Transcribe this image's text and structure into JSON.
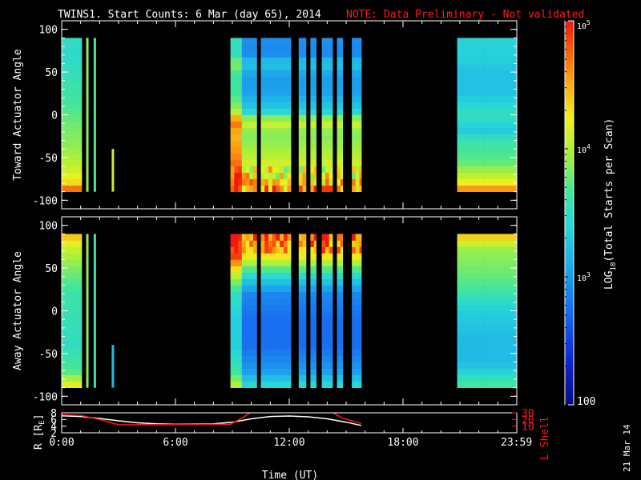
{
  "title": {
    "main": "TWINS1. Start Counts:  6 Mar (day  65), 2014",
    "note": "NOTE: Data Preliminary - Not validated",
    "note_color": "#ff1a1a"
  },
  "footer_date": "21 Mar 14",
  "chart_data": [
    {
      "type": "heatmap",
      "name": "toward",
      "ylabel": "Toward Actuator Angle",
      "ylim": [
        -110,
        110
      ],
      "yticks": [
        100,
        50,
        0,
        -50,
        -100
      ],
      "xlim": [
        0,
        24
      ],
      "angle_range": [
        -90,
        90
      ],
      "data_blocks": [
        {
          "start": 0.0,
          "end": 1.05,
          "profile": "toward_early"
        },
        {
          "start": 8.9,
          "end": 15.8,
          "profile": "toward_mid"
        },
        {
          "start": 20.85,
          "end": 24.0,
          "profile": "toward_late"
        }
      ],
      "spikes": [
        {
          "time": 1.35,
          "amin": -90,
          "amax": 90,
          "level": 3.9
        },
        {
          "time": 1.75,
          "amin": -90,
          "amax": 90,
          "level": 3.7
        },
        {
          "time": 2.7,
          "amin": -90,
          "amax": -40,
          "level": 4.1
        }
      ],
      "gaps": [
        10.4,
        12.2,
        12.4,
        13.05,
        13.5,
        13.65,
        14.45,
        14.9,
        15.2
      ]
    },
    {
      "type": "heatmap",
      "name": "away",
      "ylabel": "Away Actuator Angle",
      "ylim": [
        -110,
        110
      ],
      "yticks": [
        100,
        50,
        0,
        -50,
        -100
      ],
      "xlim": [
        0,
        24
      ],
      "angle_range": [
        -90,
        90
      ],
      "data_blocks": [
        {
          "start": 0.0,
          "end": 1.05,
          "profile": "away_early"
        },
        {
          "start": 8.9,
          "end": 15.8,
          "profile": "away_mid"
        },
        {
          "start": 20.85,
          "end": 24.0,
          "profile": "away_late"
        }
      ],
      "spikes": [
        {
          "time": 1.35,
          "amin": -90,
          "amax": 90,
          "level": 3.9
        },
        {
          "time": 1.75,
          "amin": -90,
          "amax": 90,
          "level": 3.6
        },
        {
          "time": 2.7,
          "amin": -90,
          "amax": -40,
          "level": 3.2
        }
      ],
      "gaps": [
        10.4,
        12.2,
        12.4,
        13.05,
        13.5,
        13.65,
        14.45,
        14.9,
        15.2
      ]
    },
    {
      "type": "line",
      "name": "orbit",
      "xlabel": "Time (UT)",
      "xlim": [
        0,
        24
      ],
      "xticks": [
        0,
        6,
        12,
        18,
        23.983
      ],
      "xticklabels": [
        "0:00",
        "6:00",
        "12:00",
        "18:00",
        "23:59"
      ],
      "left_axis": {
        "label": "R [R",
        "label_sub": "E",
        "label_close": "]",
        "ylim": [
          2,
          8
        ],
        "ticks": [
          2,
          4,
          6,
          8
        ],
        "color": "#ffffff"
      },
      "right_axis": {
        "label": "L Shell",
        "ylim": [
          0,
          30
        ],
        "ticks": [
          10,
          20,
          30
        ],
        "color": "#ff1a1a"
      },
      "series": [
        {
          "axis": "left",
          "color": "#ffffff",
          "x": [
            0,
            1,
            2,
            3,
            4,
            5,
            6,
            7,
            8,
            9,
            10,
            11,
            12,
            13,
            14,
            15,
            15.8
          ],
          "y": [
            7.1,
            6.9,
            6.3,
            5.6,
            5.0,
            4.7,
            4.6,
            4.65,
            4.7,
            5.2,
            6.2,
            6.9,
            7.05,
            6.8,
            6.2,
            5.2,
            4.2
          ]
        },
        {
          "axis": "right",
          "color": "#ff1a1a",
          "x": [
            0,
            1,
            2,
            3,
            8.9,
            9.5,
            10.2
          ],
          "y": [
            27,
            26,
            20,
            12,
            13,
            22,
            35
          ]
        },
        {
          "axis": "right",
          "color": "#ff1a1a",
          "x": [
            14.0,
            14.8,
            15.8
          ],
          "y": [
            35,
            22,
            14
          ]
        }
      ]
    }
  ],
  "colorbar": {
    "label": "LOG",
    "label_sub": "10",
    "label_rest": "(Total Starts per Scan)",
    "range_log": [
      2,
      5
    ],
    "ticks": [
      {
        "log": 5,
        "base": "10",
        "exp": "5"
      },
      {
        "log": 4,
        "base": "10",
        "exp": "4"
      },
      {
        "log": 3,
        "base": "10",
        "exp": "3"
      },
      {
        "log": 2,
        "base": "100",
        "exp": ""
      }
    ]
  }
}
